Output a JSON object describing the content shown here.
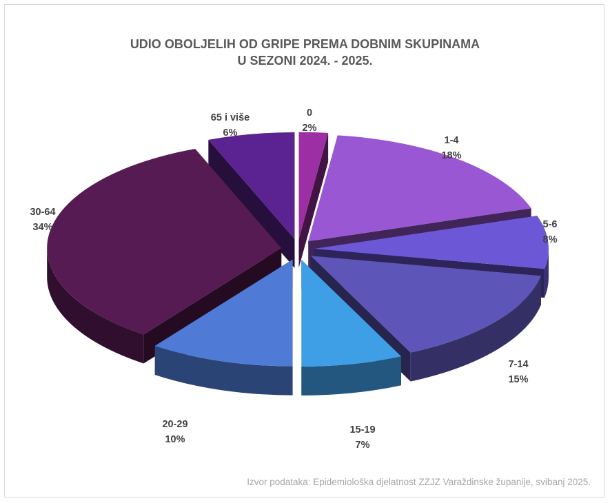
{
  "chart_data": {
    "type": "pie",
    "title_line1": "UDIO OBOLJELIH OD GRIPE PREMA DOBNIM SKUPINAMA",
    "title_line2": "U SEZONI 2024. - 2025.",
    "slices": [
      {
        "label": "0",
        "value": 2,
        "value_label": "2%",
        "color": "#9b2fa3"
      },
      {
        "label": "1-4",
        "value": 18,
        "value_label": "18%",
        "color": "#9a57d4"
      },
      {
        "label": "5-6",
        "value": 8,
        "value_label": "8%",
        "color": "#6c58d6"
      },
      {
        "label": "7-14",
        "value": 15,
        "value_label": "15%",
        "color": "#5e55b8"
      },
      {
        "label": "15-19",
        "value": 7,
        "value_label": "7%",
        "color": "#3f9fe6"
      },
      {
        "label": "20-29",
        "value": 10,
        "value_label": "10%",
        "color": "#4f7bd6"
      },
      {
        "label": "30-64",
        "value": 34,
        "value_label": "34%",
        "color": "#561b52"
      },
      {
        "label": "65 i više",
        "value": 6,
        "value_label": "6%",
        "color": "#5b2391"
      }
    ],
    "legend": "none",
    "style": "3D exploded pie"
  },
  "source": "Izvor podataka: Epidemiološka djelatnost ZZJZ Varaždinske županije, svibanj 2025."
}
